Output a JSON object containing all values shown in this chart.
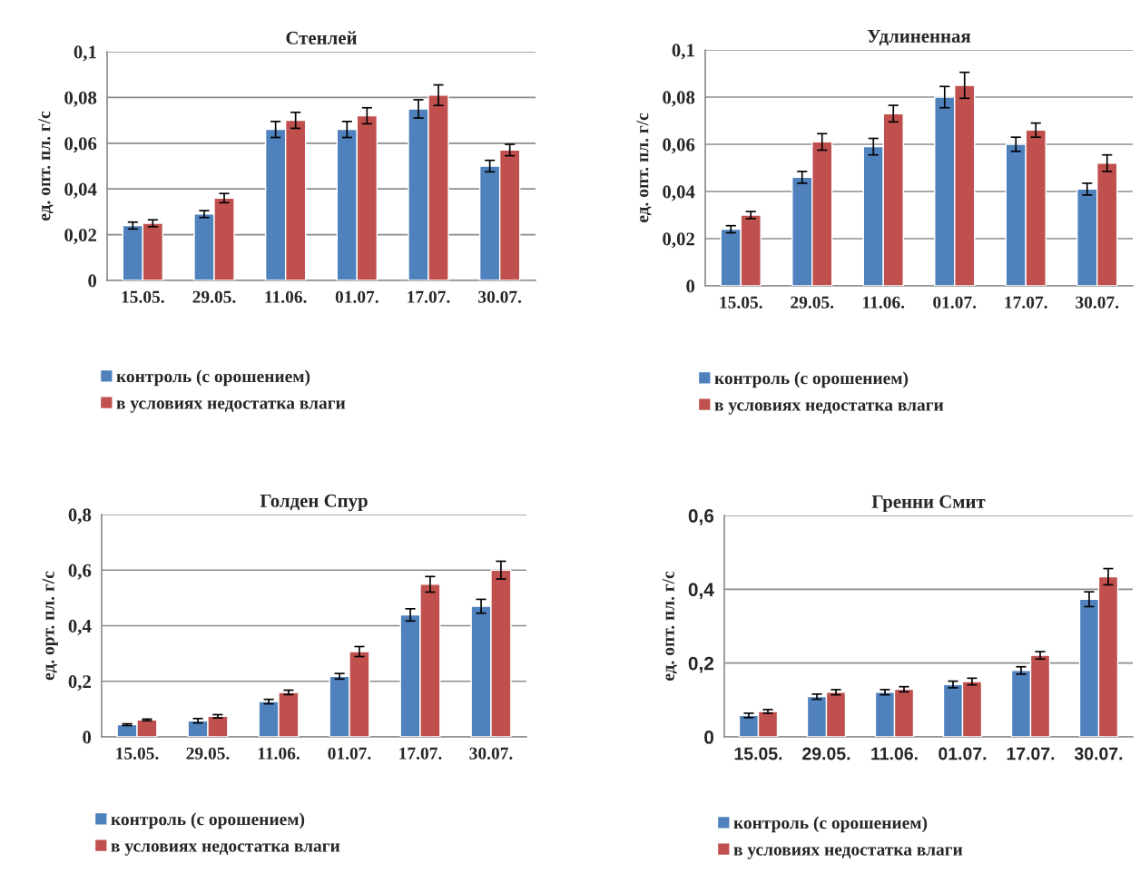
{
  "chart_data": [
    {
      "type": "bar",
      "title": "Стенлей",
      "ylabel": "ед. опт. пл. г/с",
      "categories": [
        "15.05.",
        "29.05.",
        "11.06.",
        "01.07.",
        "17.07.",
        "30.07."
      ],
      "ylim": [
        0,
        0.1
      ],
      "yticks": [
        {
          "value": 0,
          "label": "0"
        },
        {
          "value": 0.02,
          "label": "0,02"
        },
        {
          "value": 0.04,
          "label": "0,04"
        },
        {
          "value": 0.06,
          "label": "0,06"
        },
        {
          "value": 0.08,
          "label": "0,08"
        },
        {
          "value": 0.1,
          "label": "0,1"
        }
      ],
      "grid": "y",
      "legend": "bottom",
      "series": [
        {
          "name": "контроль (с орошением)",
          "color": "#4f81bd",
          "values": [
            0.024,
            0.029,
            0.066,
            0.066,
            0.075,
            0.05
          ],
          "errors": [
            0.0015,
            0.0015,
            0.0035,
            0.0035,
            0.004,
            0.0025
          ]
        },
        {
          "name": "в условиях недостатка влаги",
          "color": "#c0504d",
          "values": [
            0.025,
            0.036,
            0.07,
            0.072,
            0.081,
            0.057
          ],
          "errors": [
            0.0015,
            0.002,
            0.0035,
            0.0035,
            0.0045,
            0.0025
          ]
        }
      ]
    },
    {
      "type": "bar",
      "title": "Удлиненная",
      "ylabel": "ед. опт. пл. г/с",
      "categories": [
        "15.05.",
        "29.05.",
        "11.06.",
        "01.07.",
        "17.07.",
        "30.07."
      ],
      "ylim": [
        0,
        0.1
      ],
      "yticks": [
        {
          "value": 0,
          "label": "0"
        },
        {
          "value": 0.02,
          "label": "0,02"
        },
        {
          "value": 0.04,
          "label": "0,04"
        },
        {
          "value": 0.06,
          "label": "0,06"
        },
        {
          "value": 0.08,
          "label": "0,08"
        },
        {
          "value": 0.1,
          "label": "0,1"
        }
      ],
      "grid": "y",
      "legend": "bottom",
      "series": [
        {
          "name": "контроль (с орошением)",
          "color": "#4f81bd",
          "values": [
            0.024,
            0.046,
            0.059,
            0.08,
            0.06,
            0.041
          ],
          "errors": [
            0.0015,
            0.0025,
            0.0035,
            0.0045,
            0.003,
            0.0025
          ]
        },
        {
          "name": "в условиях недостатка влаги",
          "color": "#c0504d",
          "values": [
            0.03,
            0.061,
            0.073,
            0.085,
            0.066,
            0.052
          ],
          "errors": [
            0.0015,
            0.0035,
            0.0035,
            0.0055,
            0.003,
            0.0035
          ]
        }
      ]
    },
    {
      "type": "bar",
      "title": "Голден Спур",
      "ylabel": "ед. орт. пл. г/с",
      "categories": [
        "15.05.",
        "29.05.",
        "11.06.",
        "01.07.",
        "17.07.",
        "30.07."
      ],
      "ylim": [
        0,
        0.8
      ],
      "yticks": [
        {
          "value": 0,
          "label": "0"
        },
        {
          "value": 0.2,
          "label": "0,2"
        },
        {
          "value": 0.4,
          "label": "0,4"
        },
        {
          "value": 0.6,
          "label": "0,6"
        },
        {
          "value": 0.8,
          "label": "0,8"
        }
      ],
      "grid": "y",
      "legend": "bottom",
      "series": [
        {
          "name": "контроль (с орошением)",
          "color": "#4f81bd",
          "values": [
            0.044,
            0.058,
            0.127,
            0.218,
            0.439,
            0.47
          ],
          "errors": [
            0.003,
            0.008,
            0.008,
            0.01,
            0.022,
            0.025
          ]
        },
        {
          "name": "в условиях недостатка влаги",
          "color": "#c0504d",
          "values": [
            0.061,
            0.074,
            0.16,
            0.307,
            0.549,
            0.6
          ],
          "errors": [
            0.003,
            0.006,
            0.008,
            0.018,
            0.028,
            0.032
          ]
        }
      ]
    },
    {
      "type": "bar",
      "title": "Гренни Смит",
      "ylabel": "ед. опт. пл. г/с",
      "categories": [
        "15.05.",
        "29.05.",
        "11.06.",
        "01.07.",
        "17.07.",
        "30.07."
      ],
      "ylim": [
        0,
        0.6
      ],
      "yticks": [
        {
          "value": 0,
          "label": "0"
        },
        {
          "value": 0.2,
          "label": "0,2"
        },
        {
          "value": 0.4,
          "label": "0,4"
        },
        {
          "value": 0.6,
          "label": "0,6"
        }
      ],
      "grid": "y",
      "legend": "bottom",
      "series": [
        {
          "name": "контроль (с орошением)",
          "color": "#4f81bd",
          "values": [
            0.058,
            0.109,
            0.121,
            0.142,
            0.18,
            0.373
          ],
          "errors": [
            0.006,
            0.007,
            0.007,
            0.009,
            0.01,
            0.02
          ]
        },
        {
          "name": "в условиях недостатка влаги",
          "color": "#c0504d",
          "values": [
            0.069,
            0.121,
            0.129,
            0.15,
            0.221,
            0.434
          ],
          "errors": [
            0.005,
            0.007,
            0.007,
            0.009,
            0.01,
            0.022
          ]
        }
      ]
    }
  ]
}
